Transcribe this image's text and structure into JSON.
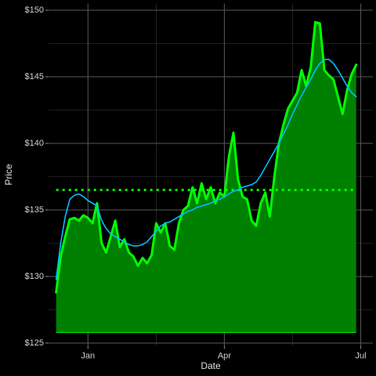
{
  "chart_data": {
    "type": "area",
    "x_label": "Date",
    "y_label": "Price",
    "x": [
      0,
      3,
      6,
      9,
      12,
      15,
      18,
      21,
      24,
      27,
      30,
      33,
      36,
      39,
      42,
      45,
      48,
      51,
      54,
      57,
      60,
      63,
      66,
      69,
      72,
      75,
      78,
      81,
      84,
      87,
      90,
      93,
      96,
      99,
      102,
      105,
      108,
      111,
      114,
      117,
      120,
      123,
      126,
      129,
      132,
      135,
      138,
      141,
      144,
      147,
      150,
      153,
      156,
      159,
      162,
      165,
      168,
      171,
      174,
      177,
      180,
      183,
      186,
      189,
      192,
      195,
      198
    ],
    "series": [
      {
        "color": "#00ff00",
        "fill": "#008000",
        "values": [
          128.8,
          131.5,
          133.0,
          134.3,
          134.4,
          134.2,
          134.6,
          134.4,
          134.0,
          135.5,
          132.5,
          131.8,
          133.0,
          134.2,
          132.2,
          132.8,
          131.8,
          131.5,
          130.8,
          131.4,
          131.0,
          131.6,
          134.0,
          133.3,
          134.0,
          132.3,
          132.0,
          134.0,
          135.0,
          135.3,
          136.7,
          135.5,
          137.0,
          135.8,
          136.7,
          135.5,
          136.3,
          136.0,
          139.0,
          140.8,
          137.3,
          136.0,
          135.8,
          134.2,
          133.8,
          135.5,
          136.3,
          134.5,
          137.5,
          140.0,
          141.4,
          142.6,
          143.2,
          143.8,
          145.5,
          144.3,
          145.7,
          149.1,
          149.0,
          145.5,
          145.1,
          144.8,
          143.5,
          142.2,
          144.0,
          145.2,
          145.9
        ]
      },
      {
        "color": "#00bfff",
        "values": [
          129.8,
          132.5,
          134.5,
          135.8,
          136.1,
          136.2,
          136.0,
          135.7,
          135.5,
          135.3,
          134.2,
          133.6,
          133.2,
          133.0,
          132.8,
          132.6,
          132.4,
          132.3,
          132.3,
          132.4,
          132.6,
          133.0,
          133.4,
          133.8,
          134.0,
          134.1,
          134.3,
          134.5,
          134.7,
          134.9,
          135.0,
          135.2,
          135.3,
          135.4,
          135.5,
          135.7,
          135.8,
          136.0,
          136.2,
          136.4,
          136.5,
          136.7,
          136.8,
          136.9,
          137.1,
          137.6,
          138.2,
          138.8,
          139.4,
          140.0,
          140.7,
          141.4,
          142.2,
          142.9,
          143.6,
          144.2,
          144.8,
          145.5,
          146.0,
          146.3,
          146.3,
          146.0,
          145.5,
          144.9,
          144.3,
          143.8,
          143.5
        ]
      }
    ],
    "baseline": 125.8,
    "hline": {
      "value": 136.5,
      "color": "#00ff00"
    },
    "xlim": [
      -5,
      209
    ],
    "xticks": [
      {
        "value": 21,
        "label": "Jan"
      },
      {
        "value": 111,
        "label": "Apr"
      },
      {
        "value": 201,
        "label": "Jul"
      }
    ],
    "ylim": [
      124.8,
      150.5
    ],
    "yticks": [
      {
        "value": 125,
        "label": "$125"
      },
      {
        "value": 130,
        "label": "$130"
      },
      {
        "value": 135,
        "label": "$135"
      },
      {
        "value": 140,
        "label": "$140"
      },
      {
        "value": 145,
        "label": "$145"
      },
      {
        "value": 150,
        "label": "$150"
      }
    ],
    "grid": true
  }
}
